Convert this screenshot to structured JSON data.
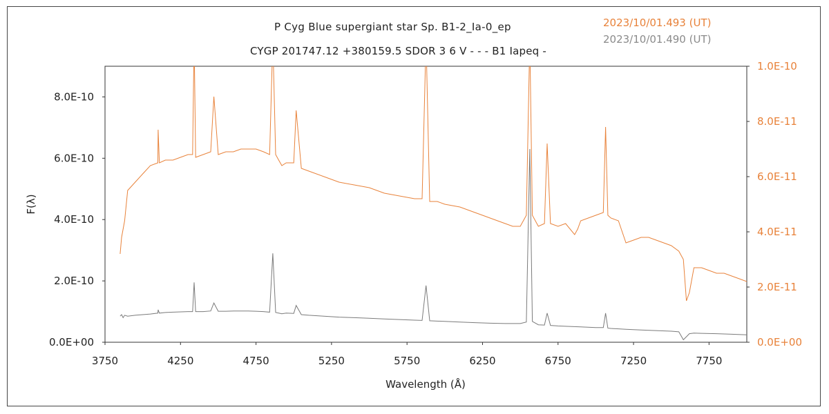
{
  "header": {
    "title_line1": "P Cyg   Blue supergiant star   Sp. B1-2_Ia-0_ep",
    "title_line2": "CYGP 201747.12 +380159.5 SDOR 3 6 V - - - B1 Iapeq -",
    "timestamp_orange": "2023/10/01.493 (UT)",
    "timestamp_gray": "2023/10/01.490 (UT)"
  },
  "colors": {
    "orange": "#e8823a",
    "gray": "#7a7a7a"
  },
  "chart_data": {
    "type": "line",
    "title": "P Cyg   Blue supergiant star   Sp. B1-2_Ia-0_ep",
    "xlabel": "Wavelength (Å)",
    "ylabel": "F(λ)",
    "xlim": [
      3750,
      8000
    ],
    "ylim": [
      0,
      9e-10
    ],
    "y2lim": [
      0,
      1e-10
    ],
    "x_ticks": [
      "3750",
      "4250",
      "4750",
      "5250",
      "5750",
      "6250",
      "6750",
      "7250",
      "7750"
    ],
    "y_ticks": [
      "0.0E+00",
      "2.0E-10",
      "4.0E-10",
      "6.0E-10",
      "8.0E-10"
    ],
    "y2_ticks": [
      "0.0E+00",
      "2.0E-11",
      "4.0E-11",
      "6.0E-11",
      "8.0E-11",
      "1.0E-10"
    ],
    "series": [
      {
        "name": "2023/10/01.493 (UT)",
        "axis": "right",
        "color": "#e8823a",
        "x": [
          3850,
          3860,
          3880,
          3900,
          3950,
          4000,
          4050,
          4100,
          4102,
          4110,
          4150,
          4200,
          4250,
          4300,
          4330,
          4340,
          4350,
          4400,
          4450,
          4471,
          4500,
          4550,
          4600,
          4650,
          4700,
          4750,
          4800,
          4840,
          4861,
          4880,
          4900,
          4921,
          4950,
          5000,
          5016,
          5050,
          5100,
          5200,
          5300,
          5400,
          5500,
          5600,
          5700,
          5800,
          5850,
          5876,
          5900,
          5950,
          6000,
          6100,
          6200,
          6250,
          6300,
          6350,
          6400,
          6450,
          6500,
          6540,
          6563,
          6580,
          6620,
          6660,
          6678,
          6700,
          6750,
          6800,
          6860,
          6880,
          6900,
          6950,
          7000,
          7050,
          7065,
          7080,
          7100,
          7150,
          7200,
          7250,
          7300,
          7350,
          7400,
          7450,
          7500,
          7550,
          7580,
          7600,
          7620,
          7650,
          7700,
          7750,
          7800,
          7850,
          7900,
          7950,
          8000
        ],
        "y": [
          3.2e-11,
          3.8e-11,
          4.4e-11,
          5.5e-11,
          5.8e-11,
          6.1e-11,
          6.4e-11,
          6.5e-11,
          7.7e-11,
          6.5e-11,
          6.6e-11,
          6.6e-11,
          6.7e-11,
          6.8e-11,
          6.8e-11,
          1.1e-10,
          6.7e-11,
          6.8e-11,
          6.9e-11,
          8.9e-11,
          6.8e-11,
          6.9e-11,
          6.9e-11,
          7e-11,
          7e-11,
          7e-11,
          6.9e-11,
          6.8e-11,
          1.1e-10,
          6.8e-11,
          6.6e-11,
          6.4e-11,
          6.5e-11,
          6.5e-11,
          8.4e-11,
          6.3e-11,
          6.2e-11,
          6e-11,
          5.8e-11,
          5.7e-11,
          5.6e-11,
          5.4e-11,
          5.3e-11,
          5.2e-11,
          5.2e-11,
          1.1e-10,
          5.1e-11,
          5.1e-11,
          5e-11,
          4.9e-11,
          4.7e-11,
          4.6e-11,
          4.5e-11,
          4.4e-11,
          4.3e-11,
          4.2e-11,
          4.2e-11,
          4.6e-11,
          1.1e-10,
          4.6e-11,
          4.2e-11,
          4.3e-11,
          7.2e-11,
          4.3e-11,
          4.2e-11,
          4.3e-11,
          3.9e-11,
          4.1e-11,
          4.4e-11,
          4.5e-11,
          4.6e-11,
          4.7e-11,
          7.8e-11,
          4.6e-11,
          4.5e-11,
          4.4e-11,
          3.6e-11,
          3.7e-11,
          3.8e-11,
          3.8e-11,
          3.7e-11,
          3.6e-11,
          3.5e-11,
          3.3e-11,
          3e-11,
          1.5e-11,
          1.8e-11,
          2.7e-11,
          2.7e-11,
          2.6e-11,
          2.5e-11,
          2.5e-11,
          2.4e-11,
          2.3e-11,
          2.2e-11
        ]
      },
      {
        "name": "2023/10/01.490 (UT)",
        "axis": "left",
        "color": "#7a7a7a",
        "x": [
          3850,
          3860,
          3870,
          3880,
          3900,
          3950,
          4000,
          4050,
          4100,
          4102,
          4110,
          4150,
          4200,
          4250,
          4300,
          4330,
          4340,
          4350,
          4400,
          4450,
          4471,
          4500,
          4550,
          4600,
          4650,
          4700,
          4750,
          4800,
          4840,
          4861,
          4880,
          4900,
          4921,
          4950,
          5000,
          5016,
          5050,
          5100,
          5200,
          5300,
          5400,
          5500,
          5600,
          5700,
          5800,
          5850,
          5876,
          5900,
          6000,
          6100,
          6200,
          6300,
          6400,
          6500,
          6540,
          6563,
          6580,
          6620,
          6660,
          6678,
          6700,
          6750,
          6800,
          6900,
          7000,
          7050,
          7065,
          7080,
          7100,
          7200,
          7300,
          7400,
          7500,
          7550,
          7580,
          7600,
          7620,
          7650,
          7700,
          7800,
          7900,
          8000
        ],
        "y": [
          8.5e-11,
          9e-11,
          8e-11,
          8.8e-11,
          8.5e-11,
          8.8e-11,
          9e-11,
          9.2e-11,
          9.5e-11,
          1.06e-10,
          9.5e-11,
          9.7e-11,
          9.8e-11,
          9.9e-11,
          1e-10,
          1e-10,
          1.95e-10,
          1e-10,
          1e-10,
          1.02e-10,
          1.28e-10,
          1.01e-10,
          1.01e-10,
          1.02e-10,
          1.02e-10,
          1.02e-10,
          1.01e-10,
          1e-10,
          9.8e-11,
          2.9e-10,
          9.7e-11,
          9.5e-11,
          9.3e-11,
          9.5e-11,
          9.4e-11,
          1.2e-10,
          9e-11,
          8.8e-11,
          8.5e-11,
          8.2e-11,
          8e-11,
          7.8e-11,
          7.6e-11,
          7.4e-11,
          7.2e-11,
          7.1e-11,
          1.85e-10,
          7e-11,
          6.8e-11,
          6.6e-11,
          6.4e-11,
          6.2e-11,
          6.1e-11,
          6.1e-11,
          6.6e-11,
          6.3e-10,
          6.8e-11,
          5.7e-11,
          5.6e-11,
          9.5e-11,
          5.5e-11,
          5.3e-11,
          5.2e-11,
          5e-11,
          4.8e-11,
          4.8e-11,
          9.5e-11,
          4.6e-11,
          4.5e-11,
          4.2e-11,
          4e-11,
          3.8e-11,
          3.6e-11,
          3.4e-11,
          8e-12,
          1.8e-11,
          2.8e-11,
          3e-11,
          2.9e-11,
          2.8e-11,
          2.6e-11,
          2.4e-11
        ]
      }
    ]
  }
}
